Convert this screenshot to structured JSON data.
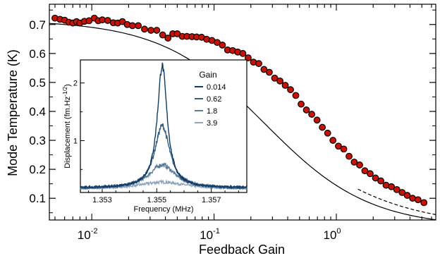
{
  "chart_data": [
    {
      "type": "scatter",
      "xlabel": "Feedback Gain",
      "ylabel": "Mode Temperature (K)",
      "xscale": "log",
      "xlim": [
        0.0045,
        6.5
      ],
      "ylim": [
        0.025,
        0.77
      ],
      "x_ticks": [
        {
          "value": 0.01,
          "base": "10",
          "exp": "-2"
        },
        {
          "value": 0.1,
          "base": "10",
          "exp": "-1"
        },
        {
          "value": 1,
          "base": "10",
          "exp": "0"
        }
      ],
      "y_ticks": [
        {
          "value": 0.1,
          "label": "0.1"
        },
        {
          "value": 0.2,
          "label": "0.2"
        },
        {
          "value": 0.3,
          "label": "0.3"
        },
        {
          "value": 0.4,
          "label": "0.4"
        },
        {
          "value": 0.5,
          "label": "0.5"
        },
        {
          "value": 0.6,
          "label": "0.6"
        },
        {
          "value": 0.7,
          "label": "0.7"
        }
      ],
      "marker_color": "#cc1100",
      "marker_edge": "#000000",
      "fit_color": "#000000",
      "fit_T0": 0.715,
      "fit_g0": 0.26,
      "fit_exp": 1.02,
      "dashed_T0": 0.715,
      "dashed_g0": 0.26,
      "dashed_exp": 0.85,
      "x": [
        0.005,
        0.0055,
        0.006,
        0.0065,
        0.007,
        0.0075,
        0.008,
        0.0087,
        0.0095,
        0.0105,
        0.0113,
        0.0122,
        0.0135,
        0.015,
        0.0163,
        0.0178,
        0.0195,
        0.0215,
        0.024,
        0.027,
        0.0305,
        0.034,
        0.038,
        0.042,
        0.046,
        0.05,
        0.055,
        0.06,
        0.066,
        0.072,
        0.079,
        0.087,
        0.096,
        0.106,
        0.117,
        0.129,
        0.142,
        0.156,
        0.172,
        0.19,
        0.21,
        0.232,
        0.256,
        0.283,
        0.313,
        0.346,
        0.382,
        0.422,
        0.466,
        0.515,
        0.569,
        0.629,
        0.695,
        0.768,
        0.849,
        0.938,
        1.04,
        1.15,
        1.27,
        1.4,
        1.55,
        1.71,
        1.89,
        2.09,
        2.31,
        2.55,
        2.82,
        3.12,
        3.45,
        3.8,
        4.2,
        4.65,
        5.2
      ],
      "y": [
        0.722,
        0.718,
        0.715,
        0.708,
        0.705,
        0.71,
        0.705,
        0.711,
        0.713,
        0.722,
        0.713,
        0.716,
        0.714,
        0.706,
        0.705,
        0.71,
        0.7,
        0.696,
        0.696,
        0.684,
        0.68,
        0.68,
        0.664,
        0.653,
        0.668,
        0.668,
        0.659,
        0.659,
        0.658,
        0.657,
        0.656,
        0.649,
        0.645,
        0.638,
        0.629,
        0.612,
        0.61,
        0.605,
        0.6,
        0.585,
        0.57,
        0.565,
        0.545,
        0.535,
        0.515,
        0.505,
        0.49,
        0.475,
        0.455,
        0.425,
        0.405,
        0.39,
        0.37,
        0.345,
        0.325,
        0.3,
        0.28,
        0.27,
        0.245,
        0.225,
        0.215,
        0.195,
        0.185,
        0.17,
        0.16,
        0.145,
        0.14,
        0.13,
        0.12,
        0.11,
        0.1,
        0.095,
        0.085
      ]
    },
    {
      "type": "line",
      "xlabel": "Frequency (MHz)",
      "ylabel": "Displacement (fm.Hz",
      "ylabel_sup": "-1/2",
      "ylabel_end": ")",
      "xlim": [
        1.3522,
        1.3583
      ],
      "ylim": [
        0.1,
        2.4
      ],
      "x_ticks": [
        {
          "value": 1.353,
          "label": "1.353"
        },
        {
          "value": 1.355,
          "label": "1.355"
        },
        {
          "value": 1.357,
          "label": "1.357"
        }
      ],
      "y_ticks": [
        {
          "value": 1,
          "label": "1"
        },
        {
          "value": 2,
          "label": "2"
        }
      ],
      "center": 1.3552,
      "legend_title": "Gain",
      "legend_position": "top-right",
      "series": [
        {
          "name": "0.014",
          "color": "#0f3c66",
          "baseline": 0.18,
          "peak": 2.3,
          "hwhm": 0.00022,
          "noise": 0.05
        },
        {
          "name": "0.62",
          "color": "#335f83",
          "baseline": 0.17,
          "peak": 1.26,
          "hwhm": 0.00034,
          "noise": 0.04
        },
        {
          "name": "1.8",
          "color": "#5a7c9a",
          "baseline": 0.16,
          "peak": 0.58,
          "hwhm": 0.0006,
          "noise": 0.03
        },
        {
          "name": "3.9",
          "color": "#8ea6bd",
          "baseline": 0.15,
          "peak": 0.28,
          "hwhm": 0.0011,
          "noise": 0.02
        }
      ]
    }
  ]
}
